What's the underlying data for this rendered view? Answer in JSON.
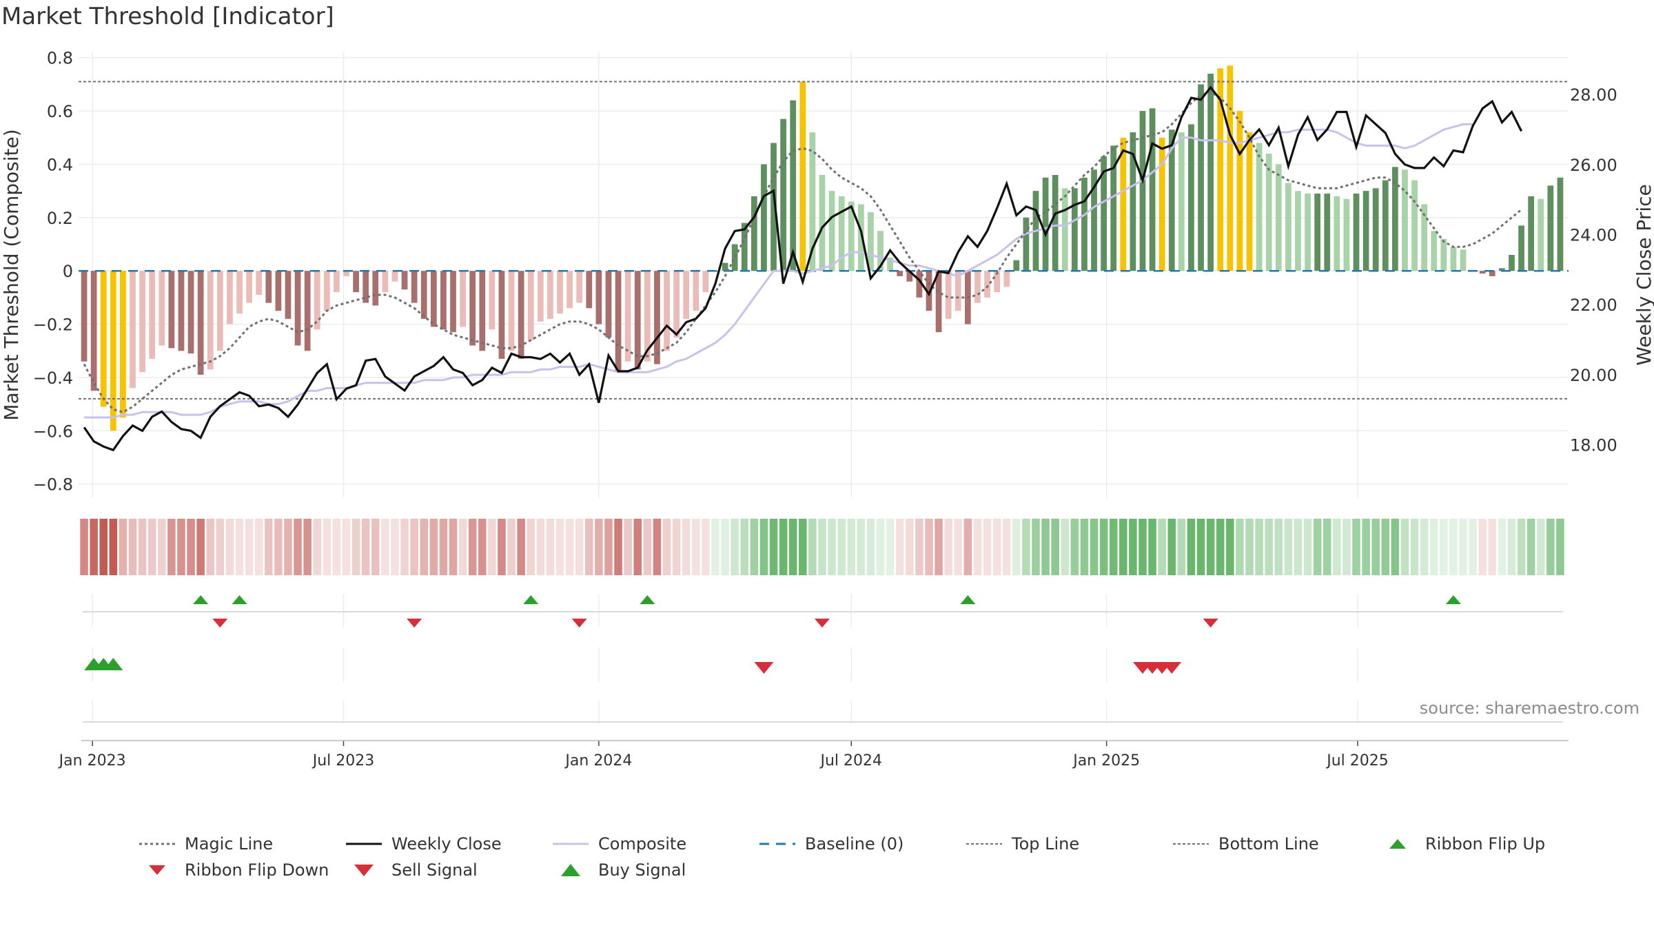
{
  "title": "Market Threshold [Indicator]",
  "source": "source: sharemaestro.com",
  "colors": {
    "positive_strong": "#5e8f5e",
    "positive_weak": "#a8d3a8",
    "negative_strong": "#a86f6c",
    "negative_weak": "#ebbcb7",
    "highlight": "#f7c200",
    "close_line": "#111111",
    "composite_line": "#c8c1ec",
    "magic_line": "#707070",
    "baseline": "#1f77b4",
    "level_line": "#707070",
    "buy": "#2ca02c",
    "sell": "#d62f3a",
    "ribbon_green": "#61b365",
    "ribbon_red": "#c0524c"
  },
  "chart_data": {
    "type": "bar",
    "start_date": "2022-12-26",
    "x_tick_labels": [
      "Jan 2023",
      "Jul 2023",
      "Jan 2024",
      "Jul 2024",
      "Jan 2025",
      "Jul 2025"
    ],
    "ylabel": "Market Threshold (Composite)",
    "ylabel_right": "Weekly Close Price",
    "ylim": [
      -0.85,
      0.82
    ],
    "y_ticks": [
      0.8,
      0.6,
      0.4,
      0.2,
      0,
      -0.2,
      -0.4,
      -0.6,
      -0.8
    ],
    "y_tick_labels": [
      "0.8",
      "0.6",
      "0.4",
      "0.2",
      "0",
      "−0.2",
      "−0.4",
      "−0.6",
      "−0.8"
    ],
    "ylim_right": [
      16.5,
      29.2
    ],
    "y_right_ticks": [
      28,
      26,
      24,
      22,
      20,
      18
    ],
    "y_right_tick_labels": [
      "28.00",
      "26.00",
      "24.00",
      "22.00",
      "20.00",
      "18.00"
    ],
    "top_line": 0.71,
    "bottom_line": -0.48,
    "baseline": 0,
    "grid": true,
    "composite": [
      -0.34,
      -0.45,
      -0.51,
      -0.6,
      -0.55,
      -0.44,
      -0.38,
      -0.33,
      -0.28,
      -0.29,
      -0.3,
      -0.31,
      -0.39,
      -0.37,
      -0.3,
      -0.2,
      -0.16,
      -0.12,
      -0.09,
      -0.12,
      -0.15,
      -0.18,
      -0.28,
      -0.3,
      -0.22,
      -0.15,
      -0.08,
      -0.02,
      -0.08,
      -0.12,
      -0.13,
      -0.08,
      -0.04,
      -0.07,
      -0.12,
      -0.18,
      -0.21,
      -0.22,
      -0.23,
      -0.21,
      -0.28,
      -0.3,
      -0.22,
      -0.33,
      -0.3,
      -0.33,
      -0.26,
      -0.19,
      -0.18,
      -0.16,
      -0.14,
      -0.12,
      -0.14,
      -0.2,
      -0.25,
      -0.38,
      -0.34,
      -0.37,
      -0.34,
      -0.35,
      -0.3,
      -0.25,
      -0.18,
      -0.15,
      -0.08,
      0.0,
      0.03,
      0.1,
      0.18,
      0.28,
      0.4,
      0.48,
      0.57,
      0.64,
      0.71,
      0.52,
      0.36,
      0.3,
      0.28,
      0.26,
      0.25,
      0.22,
      0.15,
      0.05,
      -0.02,
      -0.04,
      -0.1,
      -0.15,
      -0.23,
      -0.18,
      -0.15,
      -0.2,
      -0.12,
      -0.1,
      -0.08,
      -0.06,
      0.04,
      0.2,
      0.3,
      0.35,
      0.36,
      0.31,
      0.31,
      0.35,
      0.38,
      0.43,
      0.47,
      0.5,
      0.52,
      0.6,
      0.61,
      0.5,
      0.53,
      0.52,
      0.55,
      0.7,
      0.74,
      0.76,
      0.77,
      0.6,
      0.52,
      0.48,
      0.44,
      0.4,
      0.33,
      0.3,
      0.29,
      0.29,
      0.29,
      0.28,
      0.27,
      0.29,
      0.3,
      0.31,
      0.34,
      0.39,
      0.38,
      0.34,
      0.25,
      0.15,
      0.12,
      0.09,
      0.08,
      0.0,
      -0.01,
      -0.02,
      0.01,
      0.06,
      0.17,
      0.28,
      0.27,
      0.32,
      0.35
    ],
    "weekly_close": [
      18.5,
      18.1,
      17.95,
      17.85,
      18.25,
      18.55,
      18.4,
      18.8,
      18.95,
      18.65,
      18.45,
      18.4,
      18.2,
      18.8,
      19.1,
      19.3,
      19.5,
      19.4,
      19.1,
      19.15,
      19.05,
      18.8,
      19.15,
      19.6,
      20.05,
      20.3,
      19.3,
      19.6,
      19.7,
      20.4,
      20.45,
      19.95,
      19.75,
      19.55,
      19.95,
      20.1,
      20.25,
      20.5,
      20.15,
      20.05,
      19.7,
      19.85,
      20.2,
      20.05,
      20.6,
      20.5,
      20.5,
      20.45,
      20.6,
      20.35,
      20.6,
      20.0,
      20.3,
      19.2,
      20.55,
      20.1,
      20.1,
      20.2,
      20.7,
      21.05,
      21.4,
      21.15,
      21.5,
      21.6,
      21.9,
      22.6,
      23.6,
      24.1,
      24.15,
      24.5,
      25.1,
      25.25,
      22.6,
      23.5,
      22.65,
      23.6,
      24.2,
      24.5,
      24.65,
      24.8,
      24.1,
      22.75,
      23.1,
      23.55,
      23.2,
      22.95,
      22.7,
      22.3,
      22.95,
      22.9,
      23.5,
      23.95,
      23.65,
      24.1,
      24.75,
      25.45,
      24.55,
      24.8,
      24.7,
      24.0,
      24.6,
      24.7,
      24.85,
      24.95,
      25.35,
      25.8,
      25.9,
      26.4,
      26.3,
      25.55,
      26.6,
      26.45,
      26.55,
      27.35,
      27.9,
      27.85,
      28.2,
      27.85,
      26.85,
      26.3,
      26.7,
      27.0,
      26.55,
      27.05,
      25.95,
      26.85,
      27.35,
      26.7,
      27.0,
      27.5,
      27.5,
      26.5,
      27.4,
      27.15,
      26.9,
      26.3,
      26.0,
      25.9,
      25.9,
      26.2,
      25.95,
      26.4,
      26.35,
      27.1,
      27.6,
      27.8,
      27.2,
      27.5,
      26.95
    ],
    "magic_line": [
      -0.35,
      -0.42,
      -0.48,
      -0.52,
      -0.53,
      -0.51,
      -0.48,
      -0.45,
      -0.42,
      -0.39,
      -0.37,
      -0.36,
      -0.35,
      -0.34,
      -0.32,
      -0.29,
      -0.25,
      -0.21,
      -0.19,
      -0.18,
      -0.19,
      -0.21,
      -0.23,
      -0.22,
      -0.19,
      -0.15,
      -0.13,
      -0.12,
      -0.11,
      -0.1,
      -0.09,
      -0.09,
      -0.1,
      -0.12,
      -0.14,
      -0.17,
      -0.2,
      -0.22,
      -0.24,
      -0.25,
      -0.26,
      -0.27,
      -0.28,
      -0.29,
      -0.29,
      -0.28,
      -0.26,
      -0.24,
      -0.22,
      -0.2,
      -0.19,
      -0.19,
      -0.2,
      -0.22,
      -0.25,
      -0.28,
      -0.3,
      -0.32,
      -0.32,
      -0.31,
      -0.29,
      -0.27,
      -0.23,
      -0.18,
      -0.13,
      -0.08,
      -0.02,
      0.05,
      0.12,
      0.2,
      0.28,
      0.35,
      0.41,
      0.45,
      0.46,
      0.45,
      0.42,
      0.38,
      0.35,
      0.33,
      0.31,
      0.28,
      0.23,
      0.17,
      0.11,
      0.05,
      0.0,
      -0.05,
      -0.08,
      -0.1,
      -0.1,
      -0.1,
      -0.09,
      -0.06,
      -0.01,
      0.05,
      0.1,
      0.15,
      0.2,
      0.22,
      0.25,
      0.28,
      0.32,
      0.36,
      0.39,
      0.43,
      0.46,
      0.48,
      0.49,
      0.5,
      0.51,
      0.52,
      0.55,
      0.59,
      0.63,
      0.66,
      0.67,
      0.65,
      0.61,
      0.56,
      0.5,
      0.43,
      0.38,
      0.36,
      0.34,
      0.33,
      0.32,
      0.31,
      0.31,
      0.31,
      0.32,
      0.33,
      0.34,
      0.35,
      0.35,
      0.33,
      0.3,
      0.26,
      0.21,
      0.16,
      0.11,
      0.09,
      0.09,
      0.1,
      0.12,
      0.14,
      0.17,
      0.2,
      0.23
    ],
    "composite_line": [
      -0.55,
      -0.55,
      -0.55,
      -0.55,
      -0.54,
      -0.54,
      -0.53,
      -0.53,
      -0.53,
      -0.53,
      -0.54,
      -0.54,
      -0.54,
      -0.53,
      -0.51,
      -0.5,
      -0.49,
      -0.49,
      -0.49,
      -0.5,
      -0.5,
      -0.49,
      -0.47,
      -0.45,
      -0.45,
      -0.44,
      -0.44,
      -0.44,
      -0.43,
      -0.42,
      -0.42,
      -0.42,
      -0.42,
      -0.42,
      -0.42,
      -0.41,
      -0.41,
      -0.41,
      -0.4,
      -0.4,
      -0.39,
      -0.39,
      -0.39,
      -0.39,
      -0.38,
      -0.38,
      -0.38,
      -0.37,
      -0.37,
      -0.36,
      -0.36,
      -0.36,
      -0.35,
      -0.36,
      -0.37,
      -0.38,
      -0.38,
      -0.38,
      -0.38,
      -0.37,
      -0.36,
      -0.34,
      -0.33,
      -0.31,
      -0.29,
      -0.27,
      -0.24,
      -0.2,
      -0.15,
      -0.1,
      -0.05,
      0.0,
      0.0,
      0.0,
      -0.01,
      0.0,
      0.01,
      0.02,
      0.05,
      0.07,
      0.07,
      0.06,
      0.05,
      0.04,
      0.03,
      0.02,
      0.02,
      0.01,
      0.0,
      -0.01,
      -0.02,
      0.0,
      0.02,
      0.04,
      0.06,
      0.09,
      0.12,
      0.14,
      0.15,
      0.16,
      0.17,
      0.17,
      0.19,
      0.21,
      0.24,
      0.26,
      0.28,
      0.3,
      0.32,
      0.34,
      0.37,
      0.4,
      0.46,
      0.5,
      0.5,
      0.49,
      0.49,
      0.49,
      0.48,
      0.48,
      0.49,
      0.5,
      0.51,
      0.52,
      0.52,
      0.53,
      0.53,
      0.53,
      0.53,
      0.52,
      0.5,
      0.48,
      0.47,
      0.47,
      0.47,
      0.47,
      0.46,
      0.47,
      0.49,
      0.51,
      0.53,
      0.54,
      0.55,
      0.55
    ],
    "buy_signals": [
      "Jan 2023",
      "Jan 2023",
      "Jan 2023"
    ],
    "sell_signals": [
      "Apr 2024",
      "Feb 2025",
      "Feb 2025",
      "Feb 2025",
      "Feb 2025"
    ]
  },
  "legend": {
    "magic_line": "Magic Line",
    "weekly_close": "Weekly Close",
    "composite": "Composite",
    "baseline": "Baseline (0)",
    "top_line": "Top Line",
    "bottom_line": "Bottom Line",
    "ribbon_flip_up": "Ribbon Flip Up",
    "ribbon_flip_down": "Ribbon Flip Down",
    "sell_signal": "Sell Signal",
    "buy_signal": "Buy Signal"
  }
}
